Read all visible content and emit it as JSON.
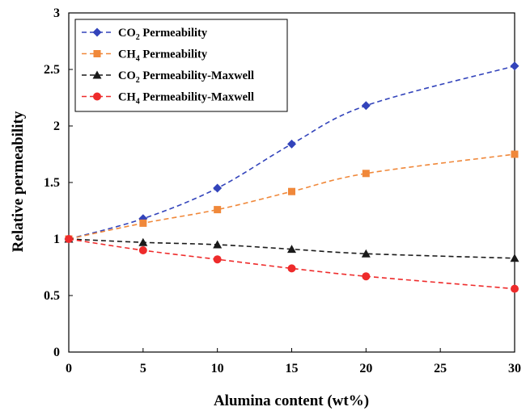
{
  "chart_data": {
    "type": "line",
    "title": "",
    "xlabel": "Alumina content (wt%)",
    "ylabel": "Relative permeability",
    "xlim": [
      0,
      30
    ],
    "ylim": [
      0,
      3
    ],
    "xticks": [
      "0",
      "5",
      "10",
      "15",
      "20",
      "25",
      "30"
    ],
    "yticks": [
      "0",
      "0.5",
      "1",
      "1.5",
      "2",
      "2.5",
      "3"
    ],
    "grid": false,
    "legend_position": "top-left",
    "x": [
      0,
      5,
      10,
      15,
      20,
      30
    ],
    "series": [
      {
        "name": "CO2 Permeability",
        "name_main": "CO",
        "name_sub": "2",
        "name_rest": " Permeability",
        "values": [
          1.0,
          1.18,
          1.45,
          1.84,
          2.18,
          2.53
        ],
        "color": "#3344bb",
        "marker": "diamond"
      },
      {
        "name": "CH4 Permeability",
        "name_main": "CH",
        "name_sub": "4",
        "name_rest": " Permeability",
        "values": [
          1.0,
          1.14,
          1.26,
          1.42,
          1.58,
          1.75
        ],
        "color": "#f0883a",
        "marker": "square"
      },
      {
        "name": "CO2 Permeability-Maxwell",
        "name_main": "CO",
        "name_sub": "2",
        "name_rest": " Permeability-Maxwell",
        "values": [
          1.0,
          0.97,
          0.95,
          0.91,
          0.87,
          0.83
        ],
        "color": "#1a1a1a",
        "marker": "triangle"
      },
      {
        "name": "CH4 Permeability-Maxwell",
        "name_main": "CH",
        "name_sub": "4",
        "name_rest": " Permeability-Maxwell",
        "values": [
          1.0,
          0.9,
          0.82,
          0.74,
          0.67,
          0.56
        ],
        "color": "#ee2b2b",
        "marker": "circle"
      }
    ]
  }
}
